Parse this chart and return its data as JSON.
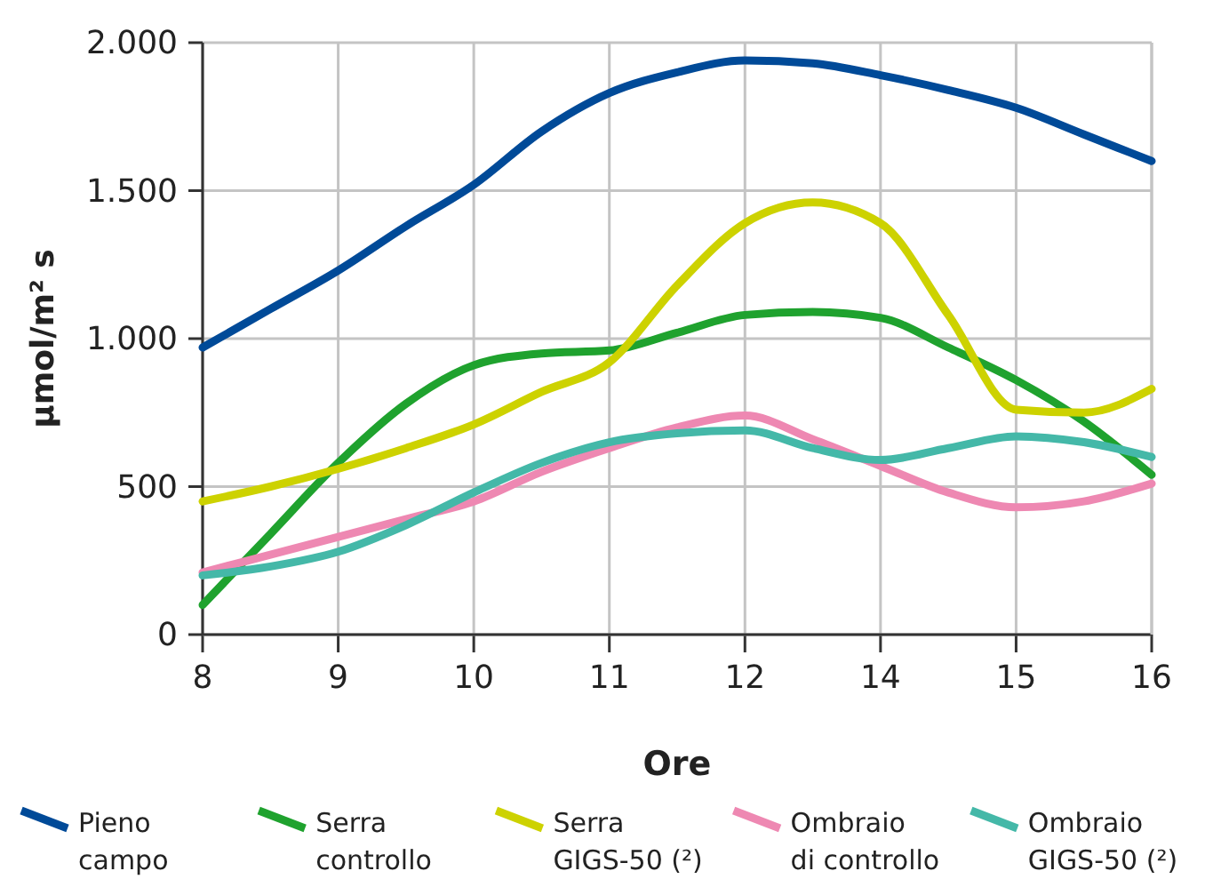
{
  "chart_data": {
    "type": "line",
    "xlabel": "Ore",
    "ylabel": "µmol/m² s",
    "categories": [
      "8",
      null,
      "9",
      null,
      "10",
      null,
      "11",
      null,
      "12",
      null,
      "14",
      null,
      "15",
      null,
      "16"
    ],
    "ylim": [
      0,
      2000
    ],
    "yticks": [
      {
        "value": 0,
        "label": "0"
      },
      {
        "value": 500,
        "label": "500"
      },
      {
        "value": 1000,
        "label": "1.000"
      },
      {
        "value": 1500,
        "label": "1.500"
      },
      {
        "value": 2000,
        "label": "2.000"
      }
    ],
    "grid": true,
    "legend": "bottom",
    "marker": "none",
    "line_style": "solid",
    "series": [
      {
        "name": "Pieno campo",
        "color": "#004a98",
        "values": [
          970,
          1100,
          1230,
          1380,
          1520,
          1700,
          1830,
          1900,
          1940,
          1930,
          1890,
          1840,
          1780,
          1690,
          1600
        ]
      },
      {
        "name": "Serra controllo",
        "color": "#1fa22e",
        "values": [
          100,
          340,
          580,
          780,
          910,
          950,
          960,
          1020,
          1080,
          1090,
          1070,
          970,
          860,
          720,
          540
        ]
      },
      {
        "name": "Serra GIGS-50 (²)",
        "color": "#cdd200",
        "values": [
          450,
          500,
          560,
          630,
          710,
          820,
          920,
          1180,
          1390,
          1460,
          1390,
          1080,
          760,
          750,
          830
        ]
      },
      {
        "name": "Ombraio di controllo",
        "color": "#ee88b2",
        "values": [
          210,
          270,
          330,
          390,
          450,
          550,
          630,
          700,
          740,
          660,
          570,
          480,
          430,
          450,
          510
        ]
      },
      {
        "name": "Ombraio GIGS-50 (²)",
        "color": "#44b8a8",
        "values": [
          200,
          230,
          280,
          370,
          480,
          580,
          650,
          680,
          690,
          630,
          590,
          630,
          670,
          650,
          600
        ]
      }
    ]
  }
}
